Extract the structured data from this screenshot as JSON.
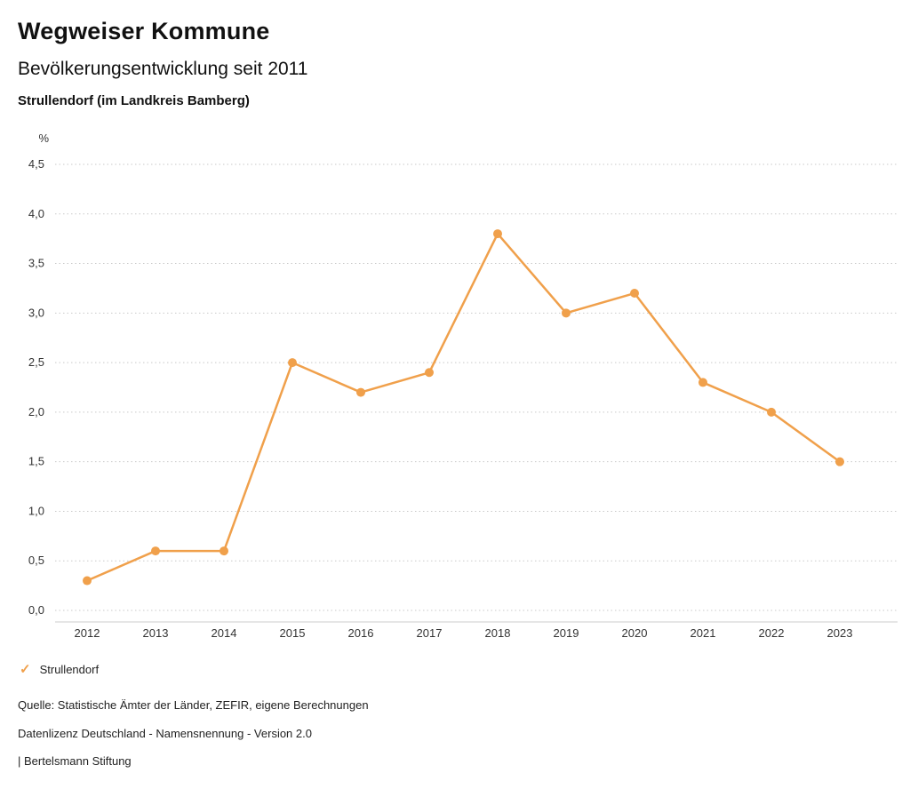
{
  "header": {
    "title": "Wegweiser Kommune",
    "subtitle": "Bevölkerungsentwicklung seit 2011",
    "region": "Strullendorf (im Landkreis Bamberg)"
  },
  "chart_data": {
    "type": "line",
    "title": "Bevölkerungsentwicklung seit 2011 — Strullendorf (im Landkreis Bamberg)",
    "unit_label": "%",
    "x": [
      "2012",
      "2013",
      "2014",
      "2015",
      "2016",
      "2017",
      "2018",
      "2019",
      "2020",
      "2021",
      "2022",
      "2023"
    ],
    "series": [
      {
        "name": "Strullendorf",
        "values": [
          0.3,
          0.6,
          0.6,
          2.5,
          2.2,
          2.4,
          3.8,
          3.0,
          3.2,
          2.3,
          2.0,
          1.5
        ],
        "color": "#F0A04B"
      }
    ],
    "ylim": [
      0,
      4.5
    ],
    "ytick_step": 0.5,
    "ytick_labels": [
      "0,0",
      "0,5",
      "1,0",
      "1,5",
      "2,0",
      "2,5",
      "3,0",
      "3,5",
      "4,0",
      "4,5"
    ],
    "grid": "dotted-horizontal",
    "legend_position": "bottom-left",
    "colors": {
      "gridline": "#c9c9c9",
      "axis_line": "#cccccc",
      "tick_text": "#333333"
    }
  },
  "legend": {
    "check_icon": "✓",
    "label": "Strullendorf"
  },
  "footer": {
    "source": "Quelle: Statistische Ämter der Länder, ZEFIR, eigene Berechnungen",
    "license": "Datenlizenz Deutschland - Namensnennung - Version 2.0",
    "publisher": "| Bertelsmann Stiftung"
  }
}
